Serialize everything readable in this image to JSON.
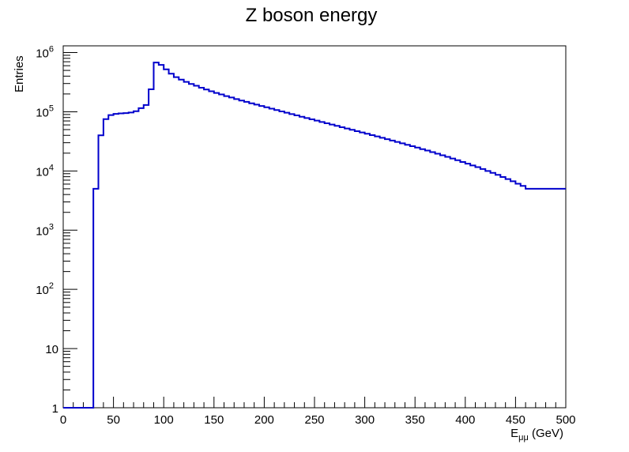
{
  "chart_data": {
    "type": "histogram",
    "title": "Z boson energy",
    "xlabel_main": "E",
    "xlabel_sub": "μμ",
    "xlabel_unit": " (GeV)",
    "ylabel": "Entries",
    "xlim": [
      0,
      500
    ],
    "ylim": [
      1,
      1300000
    ],
    "yscale": "log",
    "grid": false,
    "legend": "none",
    "line_color": "#0000cc",
    "bin_width": 5,
    "x_tick_labels": [
      "0",
      "50",
      "100",
      "150",
      "200",
      "250",
      "300",
      "350",
      "400",
      "450",
      "500"
    ],
    "x_ticks": [
      0,
      50,
      100,
      150,
      200,
      250,
      300,
      350,
      400,
      450,
      500
    ],
    "y_tick_labels": [
      {
        "value": 1,
        "base": "1",
        "exp": ""
      },
      {
        "value": 10,
        "base": "10",
        "exp": ""
      },
      {
        "value": 100,
        "base": "10",
        "exp": "2"
      },
      {
        "value": 1000,
        "base": "10",
        "exp": "3"
      },
      {
        "value": 10000,
        "base": "10",
        "exp": "4"
      },
      {
        "value": 100000,
        "base": "10",
        "exp": "5"
      },
      {
        "value": 1000000,
        "base": "10",
        "exp": "6"
      }
    ],
    "bin_edges_start": 0,
    "values": [
      1,
      1,
      1,
      1,
      1,
      1,
      5000,
      40000,
      75000,
      88000,
      92000,
      94000,
      95000,
      97000,
      102000,
      115000,
      130000,
      240000,
      680000,
      620000,
      520000,
      440000,
      385000,
      350000,
      320000,
      295000,
      275000,
      255000,
      238000,
      222000,
      208000,
      196000,
      184000,
      174000,
      164000,
      155000,
      147000,
      139000,
      132000,
      125000,
      119000,
      113000,
      107000,
      101500,
      96500,
      91500,
      87000,
      82500,
      78500,
      74500,
      70800,
      67300,
      64000,
      60800,
      57800,
      54900,
      52200,
      49600,
      47100,
      44800,
      42500,
      40300,
      38300,
      36300,
      34400,
      32600,
      30900,
      29300,
      27700,
      26200,
      24800,
      23400,
      22100,
      20800,
      19600,
      18400,
      17300,
      16200,
      15200,
      14200,
      13300,
      12400,
      11600,
      10800,
      10000,
      9300,
      8600,
      7900,
      7300,
      6700,
      6100,
      5600,
      5000,
      5000,
      5000,
      5000,
      5000,
      5000,
      5000,
      5000
    ]
  }
}
